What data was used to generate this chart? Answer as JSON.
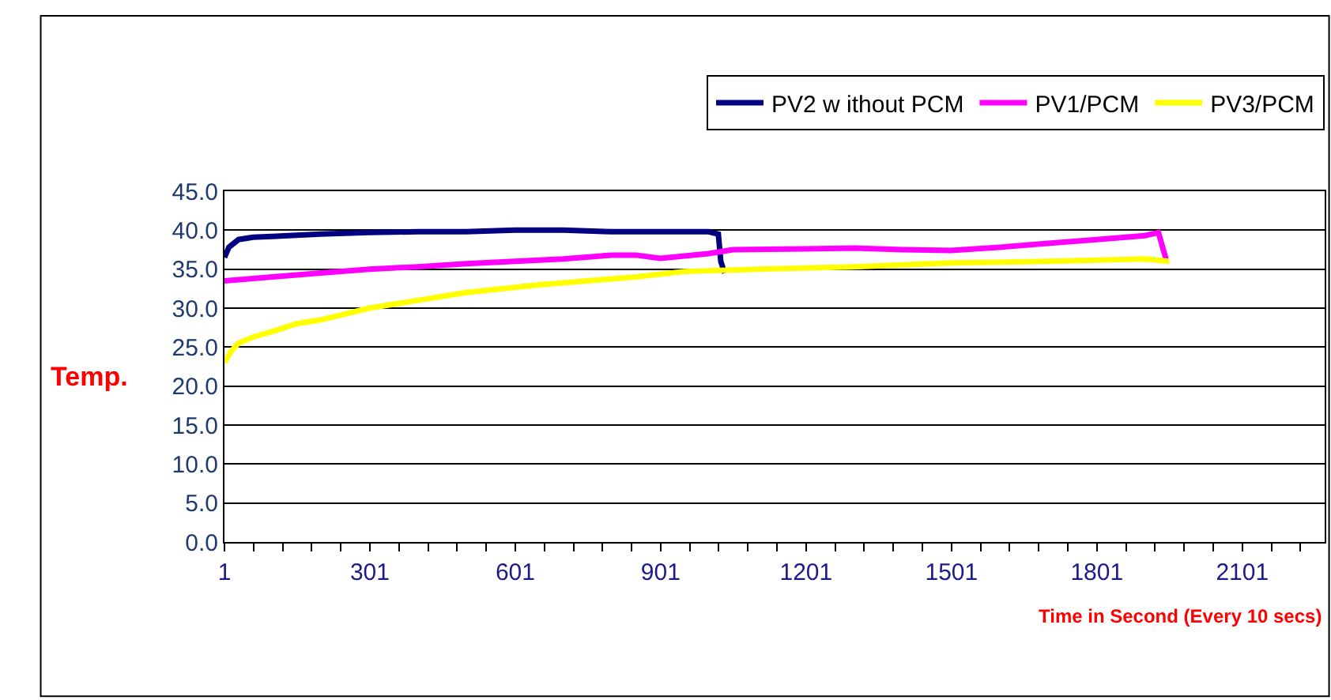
{
  "chart_data": {
    "type": "line",
    "xlabel": "Time in Second (Every 10 secs)",
    "ylabel": "Temp.",
    "series": [
      {
        "name": "PV2 w ithout PCM",
        "color": "#000080",
        "x": [
          1,
          10,
          30,
          60,
          100,
          200,
          300,
          400,
          500,
          600,
          700,
          800,
          900,
          1000,
          1020,
          1025,
          1033
        ],
        "values": [
          36.5,
          37.8,
          38.8,
          39.1,
          39.2,
          39.5,
          39.7,
          39.8,
          39.8,
          40.0,
          40.0,
          39.8,
          39.8,
          39.8,
          39.5,
          36.0,
          34.5
        ]
      },
      {
        "name": "PV1/PCM",
        "color": "#ff00ff",
        "x": [
          1,
          100,
          200,
          300,
          400,
          500,
          600,
          700,
          800,
          850,
          900,
          1000,
          1050,
          1200,
          1300,
          1400,
          1500,
          1600,
          1700,
          1800,
          1900,
          1928,
          1944
        ],
        "values": [
          33.5,
          34.0,
          34.5,
          35.0,
          35.3,
          35.7,
          36.0,
          36.3,
          36.8,
          36.8,
          36.4,
          37.0,
          37.5,
          37.6,
          37.7,
          37.5,
          37.4,
          37.8,
          38.3,
          38.8,
          39.3,
          39.7,
          36.2
        ]
      },
      {
        "name": "PV3/PCM",
        "color": "#ffff00",
        "x": [
          1,
          15,
          30,
          60,
          100,
          150,
          200,
          300,
          400,
          500,
          650,
          750,
          850,
          950,
          1100,
          1300,
          1500,
          1700,
          1900,
          1950
        ],
        "values": [
          23.0,
          24.5,
          25.5,
          26.3,
          27.0,
          28.0,
          28.5,
          30.0,
          31.0,
          32.0,
          33.0,
          33.5,
          34.0,
          34.7,
          35.0,
          35.3,
          35.8,
          36.0,
          36.3,
          36.0
        ]
      }
    ],
    "xlim": [
      1,
      2271
    ],
    "xticks": [
      1,
      {
        "value": 61,
        "label": null
      },
      {
        "value": 121,
        "label": null
      },
      {
        "value": 181,
        "label": null
      },
      {
        "value": 241,
        "label": null
      },
      301,
      {
        "value": 361,
        "label": null
      },
      {
        "value": 421,
        "label": null
      },
      {
        "value": 481,
        "label": null
      },
      {
        "value": 541,
        "label": null
      },
      601,
      {
        "value": 661,
        "label": null
      },
      {
        "value": 721,
        "label": null
      },
      {
        "value": 781,
        "label": null
      },
      {
        "value": 841,
        "label": null
      },
      901,
      {
        "value": 961,
        "label": null
      },
      {
        "value": 1021,
        "label": null
      },
      {
        "value": 1081,
        "label": null
      },
      {
        "value": 1141,
        "label": null
      },
      1201,
      {
        "value": 1261,
        "label": null
      },
      {
        "value": 1321,
        "label": null
      },
      {
        "value": 1381,
        "label": null
      },
      {
        "value": 1441,
        "label": null
      },
      1501,
      {
        "value": 1561,
        "label": null
      },
      {
        "value": 1621,
        "label": null
      },
      {
        "value": 1681,
        "label": null
      },
      {
        "value": 1741,
        "label": null
      },
      1801,
      {
        "value": 1861,
        "label": null
      },
      {
        "value": 1921,
        "label": null
      },
      {
        "value": 1981,
        "label": null
      },
      {
        "value": 2041,
        "label": null
      },
      2101,
      {
        "value": 2161,
        "label": null
      },
      {
        "value": 2221,
        "label": null
      }
    ],
    "ylim": [
      0,
      45
    ],
    "yticks": [
      {
        "value": 0,
        "label": "0.0"
      },
      {
        "value": 5,
        "label": "5.0"
      },
      {
        "value": 10,
        "label": "10.0"
      },
      {
        "value": 15,
        "label": "15.0"
      },
      {
        "value": 20,
        "label": "20.0"
      },
      {
        "value": 25,
        "label": "25.0"
      },
      {
        "value": 30,
        "label": "30.0"
      },
      {
        "value": 35,
        "label": "35.0"
      },
      {
        "value": 40,
        "label": "40.0"
      },
      {
        "value": 45,
        "label": "45.0"
      }
    ],
    "grid": "y",
    "legend": "top right",
    "marker": "none",
    "line_style": "solid"
  }
}
